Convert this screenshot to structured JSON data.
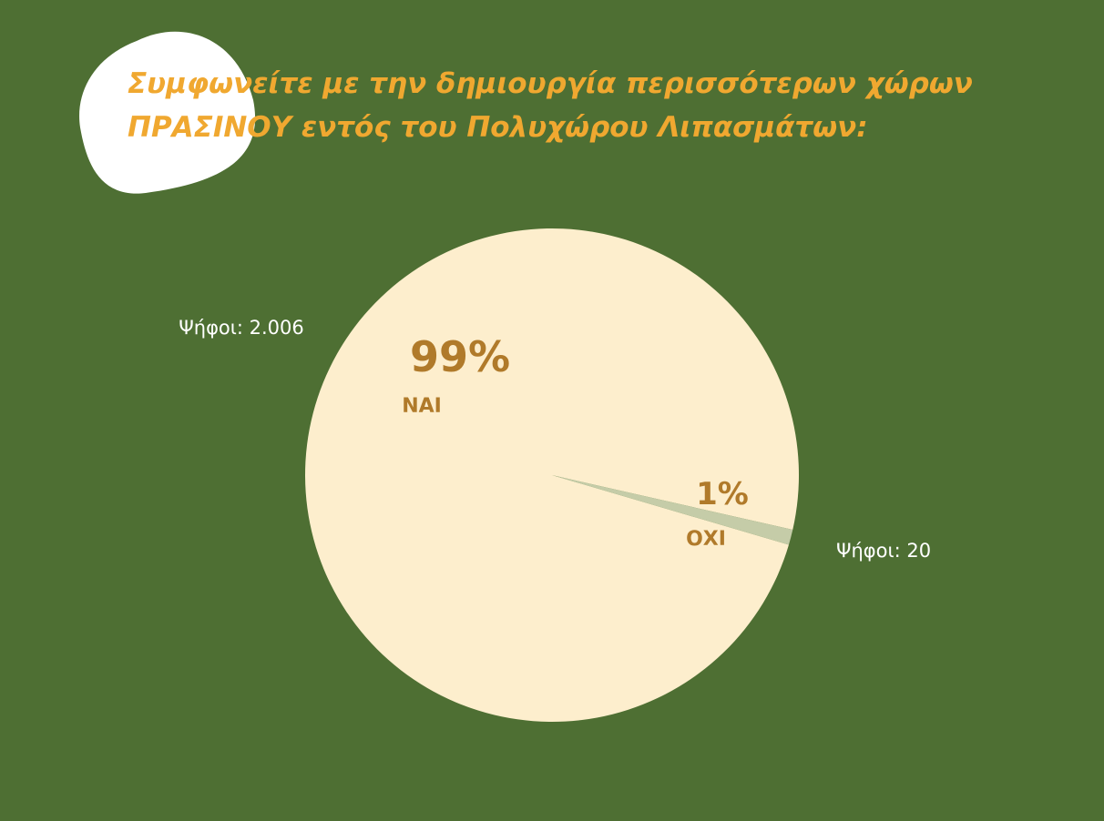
{
  "chart_data": {
    "type": "pie",
    "title": [
      "Συμφωνείτε με την δημιουργία περισσότερων χώρων",
      "ΠΡΑΣΙΝΟΥ εντός του Πολυχώρου Λιπασμάτων:"
    ],
    "categories": [
      "ΝΑΙ",
      "ΟΧΙ"
    ],
    "values": [
      99,
      1
    ],
    "value_labels": [
      "99%",
      "1%"
    ],
    "colors": [
      "#fdeecd",
      "#c5cca8"
    ],
    "annotations": [
      "Ψήφοι: 2.006",
      "Ψήφοι: 20"
    ]
  }
}
